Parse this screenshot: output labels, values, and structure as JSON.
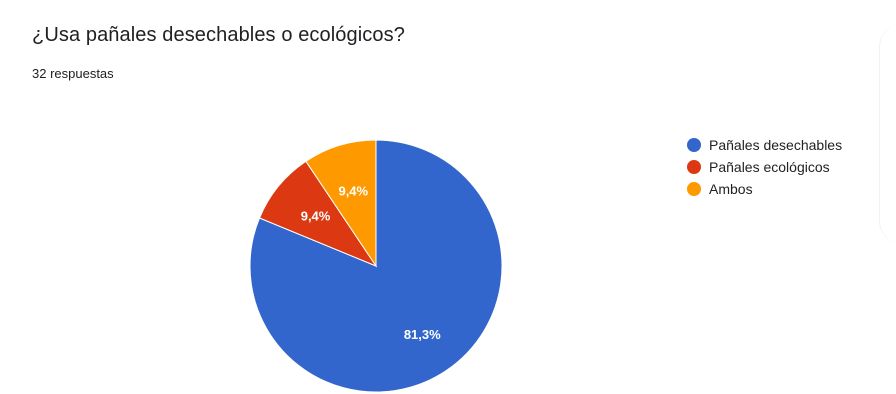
{
  "question": {
    "title": "¿Usa pañales desechables o ecológicos?",
    "responses": "32 respuestas"
  },
  "chart_data": {
    "type": "pie",
    "categories": [
      "Pañales desechables",
      "Pañales ecológicos",
      "Ambos"
    ],
    "values": [
      81.3,
      9.4,
      9.4
    ],
    "labels": [
      "81,3%",
      "9,4%",
      "9,4%"
    ],
    "colors": [
      "#3366cc",
      "#dc3912",
      "#ff9900"
    ],
    "title": "",
    "legend_position": "right"
  }
}
